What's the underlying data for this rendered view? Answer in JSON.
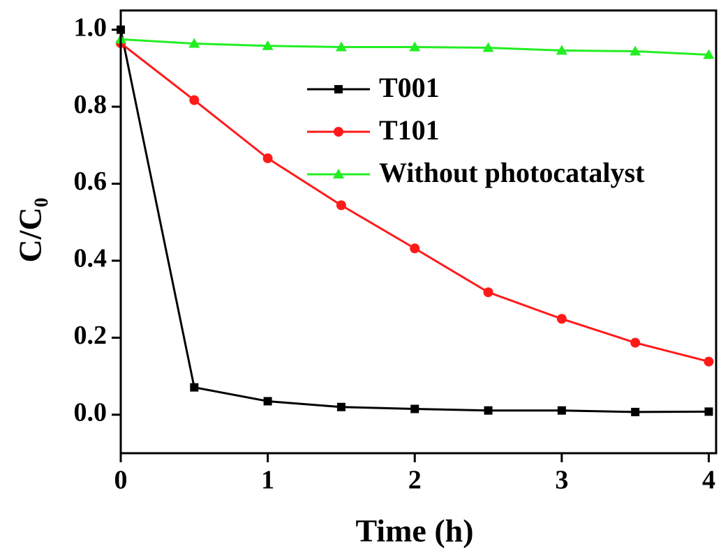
{
  "chart_data": {
    "type": "line",
    "x_label": "Time (h)",
    "y_label": "C/C₀",
    "x": [
      0,
      0.5,
      1,
      1.5,
      2,
      2.5,
      3,
      3.5,
      4
    ],
    "series": [
      {
        "name": "T001",
        "color": "#000000",
        "marker": "square",
        "values": [
          1.0,
          0.071,
          0.035,
          0.02,
          0.015,
          0.011,
          0.011,
          0.007,
          0.008
        ]
      },
      {
        "name": "T101",
        "color": "#ff1a1a",
        "marker": "circle",
        "values": [
          0.965,
          0.817,
          0.666,
          0.544,
          0.432,
          0.318,
          0.249,
          0.187,
          0.138
        ]
      },
      {
        "name": "Without photocatalyst",
        "color": "#22ee22",
        "marker": "triangle",
        "values": [
          0.975,
          0.964,
          0.958,
          0.955,
          0.955,
          0.953,
          0.946,
          0.944,
          0.935
        ]
      }
    ],
    "xlim": [
      0,
      4.05
    ],
    "xticks": [
      0,
      1,
      2,
      3,
      4
    ],
    "ylim": [
      -0.1,
      1.05
    ],
    "yticks": [
      {
        "value": 0,
        "label": "0.0"
      },
      0.2,
      0.4,
      0.6,
      0.8,
      {
        "value": 1,
        "label": "1.0"
      }
    ],
    "legend": "upper right"
  }
}
